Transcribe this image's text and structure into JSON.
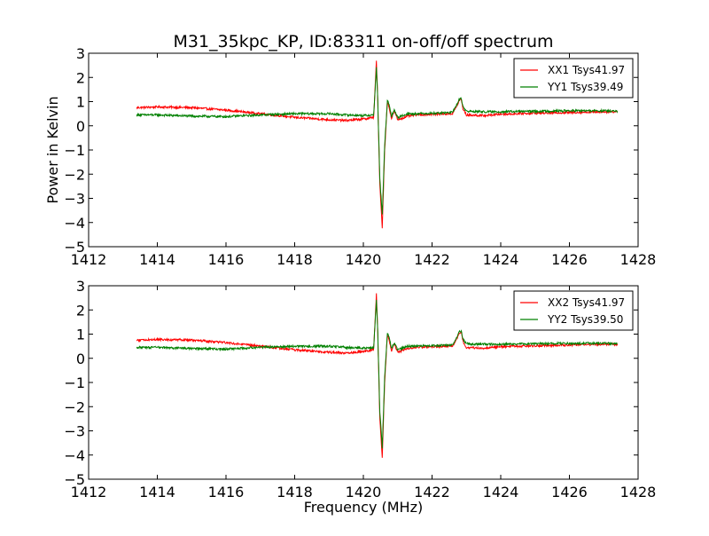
{
  "chart_data": {
    "title": "M31_35kpc_KP, ID:83311 on-off/off spectrum",
    "xlabel": "Frequency (MHz)",
    "ylabel": "Power in Kelvin",
    "panels": [
      {
        "type": "line",
        "xlim": [
          1412,
          1428
        ],
        "ylim": [
          -5,
          3
        ],
        "xticks": [
          "1412",
          "1414",
          "1416",
          "1418",
          "1420",
          "1422",
          "1424",
          "1426",
          "1428"
        ],
        "yticks": [
          "3",
          "2",
          "1",
          "0",
          "−1",
          "−2",
          "−3",
          "−4",
          "−5"
        ],
        "legend_position": "top-right",
        "grid": false,
        "series": [
          {
            "name": "XX1 Tsys41.97",
            "color": "#ff0000",
            "x": [
              1413.4,
              1414.0,
              1415.0,
              1416.0,
              1417.0,
              1418.0,
              1419.0,
              1419.5,
              1420.0,
              1420.3,
              1420.38,
              1420.42,
              1420.48,
              1420.55,
              1420.62,
              1420.7,
              1420.76,
              1420.82,
              1420.9,
              1421.0,
              1421.1,
              1421.3,
              1421.5,
              1422.0,
              1422.6,
              1422.8,
              1422.85,
              1422.9,
              1423.0,
              1423.5,
              1424.0,
              1425.0,
              1426.0,
              1427.0,
              1427.4
            ],
            "y": [
              0.75,
              0.78,
              0.75,
              0.65,
              0.5,
              0.35,
              0.25,
              0.22,
              0.28,
              0.35,
              2.7,
              1.0,
              -2.5,
              -4.2,
              -1.0,
              1.0,
              0.7,
              0.3,
              0.6,
              0.25,
              0.3,
              0.4,
              0.45,
              0.48,
              0.5,
              1.05,
              1.1,
              0.7,
              0.45,
              0.42,
              0.48,
              0.52,
              0.55,
              0.58,
              0.58
            ]
          },
          {
            "name": "YY1 Tsys39.49",
            "color": "#008000",
            "x": [
              1413.4,
              1414.0,
              1415.0,
              1416.0,
              1417.0,
              1418.0,
              1419.0,
              1419.5,
              1420.0,
              1420.3,
              1420.38,
              1420.42,
              1420.48,
              1420.55,
              1420.62,
              1420.7,
              1420.76,
              1420.82,
              1420.9,
              1421.0,
              1421.1,
              1421.3,
              1421.5,
              1422.0,
              1422.6,
              1422.8,
              1422.85,
              1422.9,
              1423.0,
              1423.5,
              1424.0,
              1425.0,
              1426.0,
              1427.0,
              1427.4
            ],
            "y": [
              0.45,
              0.45,
              0.4,
              0.38,
              0.45,
              0.5,
              0.5,
              0.45,
              0.42,
              0.45,
              2.4,
              1.0,
              -2.2,
              -3.7,
              -0.8,
              1.05,
              0.8,
              0.4,
              0.65,
              0.35,
              0.4,
              0.5,
              0.5,
              0.52,
              0.55,
              1.1,
              1.15,
              0.8,
              0.6,
              0.58,
              0.58,
              0.6,
              0.62,
              0.62,
              0.6
            ]
          }
        ]
      },
      {
        "type": "line",
        "xlim": [
          1412,
          1428
        ],
        "ylim": [
          -5,
          3
        ],
        "xticks": [
          "1412",
          "1414",
          "1416",
          "1418",
          "1420",
          "1422",
          "1424",
          "1426",
          "1428"
        ],
        "yticks": [
          "3",
          "2",
          "1",
          "0",
          "−1",
          "−2",
          "−3",
          "−4",
          "−5"
        ],
        "legend_position": "top-right",
        "grid": false,
        "series": [
          {
            "name": "XX2 Tsys41.97",
            "color": "#ff0000",
            "x": [
              1413.4,
              1414.0,
              1415.0,
              1416.0,
              1417.0,
              1418.0,
              1419.0,
              1419.5,
              1420.0,
              1420.3,
              1420.38,
              1420.42,
              1420.48,
              1420.55,
              1420.62,
              1420.7,
              1420.76,
              1420.82,
              1420.9,
              1421.0,
              1421.1,
              1421.3,
              1421.5,
              1422.0,
              1422.6,
              1422.8,
              1422.85,
              1422.9,
              1423.0,
              1423.5,
              1424.0,
              1425.0,
              1426.0,
              1427.0,
              1427.4
            ],
            "y": [
              0.75,
              0.78,
              0.75,
              0.65,
              0.5,
              0.35,
              0.25,
              0.22,
              0.28,
              0.35,
              2.7,
              1.0,
              -2.5,
              -4.1,
              -1.0,
              1.0,
              0.7,
              0.3,
              0.6,
              0.25,
              0.3,
              0.4,
              0.45,
              0.48,
              0.5,
              1.05,
              1.1,
              0.7,
              0.45,
              0.42,
              0.48,
              0.52,
              0.55,
              0.58,
              0.58
            ]
          },
          {
            "name": "YY2 Tsys39.50",
            "color": "#008000",
            "x": [
              1413.4,
              1414.0,
              1415.0,
              1416.0,
              1417.0,
              1418.0,
              1419.0,
              1419.5,
              1420.0,
              1420.3,
              1420.38,
              1420.42,
              1420.48,
              1420.55,
              1420.62,
              1420.7,
              1420.76,
              1420.82,
              1420.9,
              1421.0,
              1421.1,
              1421.3,
              1421.5,
              1422.0,
              1422.6,
              1422.8,
              1422.85,
              1422.9,
              1423.0,
              1423.5,
              1424.0,
              1425.0,
              1426.0,
              1427.0,
              1427.4
            ],
            "y": [
              0.45,
              0.45,
              0.4,
              0.38,
              0.45,
              0.5,
              0.5,
              0.45,
              0.42,
              0.45,
              2.4,
              1.0,
              -2.2,
              -3.7,
              -0.8,
              1.05,
              0.8,
              0.4,
              0.65,
              0.35,
              0.4,
              0.5,
              0.5,
              0.52,
              0.55,
              1.1,
              1.15,
              0.8,
              0.6,
              0.58,
              0.58,
              0.6,
              0.62,
              0.62,
              0.6
            ]
          }
        ]
      }
    ]
  }
}
